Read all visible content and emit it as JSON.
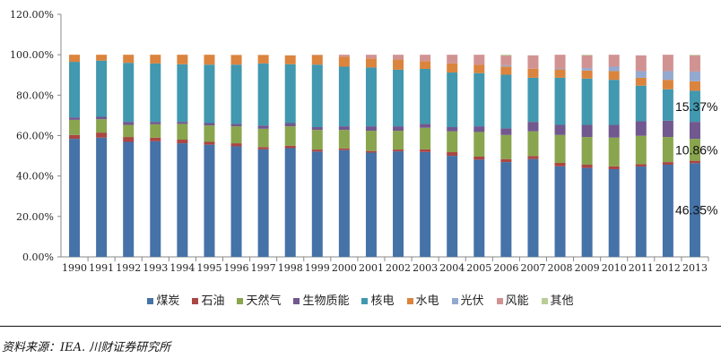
{
  "chart_data": {
    "type": "bar",
    "stacked": true,
    "ylim": [
      0,
      120
    ],
    "yticks": [
      "0.00%",
      "20.00%",
      "40.00%",
      "60.00%",
      "80.00%",
      "100.00%",
      "120.00%"
    ],
    "ytick_values": [
      0,
      20,
      40,
      60,
      80,
      100,
      120
    ],
    "categories": [
      "1990",
      "1991",
      "1992",
      "1993",
      "1994",
      "1995",
      "1996",
      "1997",
      "1998",
      "1999",
      "2000",
      "2001",
      "2002",
      "2003",
      "2004",
      "2005",
      "2006",
      "2007",
      "2008",
      "2009",
      "2010",
      "2011",
      "2012",
      "2013"
    ],
    "series": [
      {
        "name": "煤炭",
        "color": "#4572A7",
        "values": [
          58.4,
          59.0,
          56.9,
          57.2,
          56.2,
          55.5,
          54.7,
          53.2,
          53.8,
          52.1,
          52.8,
          51.6,
          52.2,
          51.9,
          50.0,
          48.1,
          46.9,
          48.4,
          44.8,
          44.0,
          43.4,
          44.7,
          45.6,
          46.35
        ]
      },
      {
        "name": "石油",
        "color": "#AA4643",
        "values": [
          1.9,
          2.5,
          2.4,
          1.8,
          1.8,
          1.4,
          1.5,
          1.1,
          1.2,
          1.0,
          0.9,
          0.8,
          0.9,
          1.3,
          1.8,
          1.5,
          1.5,
          1.5,
          1.7,
          1.6,
          1.4,
          1.2,
          1.3,
          1.2
        ]
      },
      {
        "name": "天然气",
        "color": "#89A54E",
        "values": [
          7.5,
          6.6,
          6.0,
          6.6,
          7.8,
          8.1,
          8.4,
          9.1,
          9.6,
          9.7,
          9.1,
          10.0,
          9.3,
          10.7,
          10.3,
          12.2,
          11.9,
          12.2,
          13.8,
          13.7,
          14.2,
          14.0,
          12.4,
          10.86
        ]
      },
      {
        "name": "生物质能",
        "color": "#71588F",
        "values": [
          1.2,
          1.2,
          1.5,
          1.2,
          1.0,
          1.2,
          1.2,
          1.6,
          1.6,
          1.4,
          1.8,
          2.2,
          2.2,
          1.9,
          2.1,
          2.8,
          3.3,
          4.7,
          5.0,
          6.0,
          6.3,
          7.2,
          8.1,
          8.4
        ]
      },
      {
        "name": "核电",
        "color": "#4198AF",
        "values": [
          27.5,
          27.8,
          29.2,
          28.9,
          28.5,
          28.9,
          29.3,
          30.7,
          29.1,
          30.9,
          29.5,
          29.1,
          28.0,
          27.2,
          27.0,
          26.3,
          26.5,
          21.8,
          23.3,
          22.9,
          22.3,
          17.6,
          15.5,
          15.37
        ]
      },
      {
        "name": "水电",
        "color": "#DB843D",
        "values": [
          3.5,
          2.9,
          4.0,
          4.3,
          4.7,
          4.9,
          4.8,
          4.2,
          4.4,
          4.7,
          4.9,
          4.5,
          5.0,
          3.8,
          4.5,
          4.1,
          4.1,
          4.5,
          4.2,
          4.0,
          4.3,
          3.9,
          4.7,
          4.7
        ]
      },
      {
        "name": "光伏",
        "color": "#93A9CF",
        "values": [
          0,
          0,
          0,
          0,
          0,
          0,
          0,
          0,
          0,
          0,
          0,
          0,
          0,
          0,
          0,
          0,
          0.6,
          0,
          0.4,
          1.2,
          2.2,
          3.3,
          4.3,
          4.8
        ]
      },
      {
        "name": "风能",
        "color": "#D19392",
        "values": [
          0,
          0,
          0,
          0,
          0,
          0,
          0,
          0,
          0,
          0.2,
          1.0,
          1.8,
          2.4,
          3.2,
          4.3,
          5.0,
          4.8,
          6.6,
          6.8,
          6.3,
          5.9,
          7.8,
          8.1,
          8.0
        ]
      },
      {
        "name": "其他",
        "color": "#B9CD96",
        "values": [
          0,
          0,
          0,
          0,
          0,
          0,
          0,
          0,
          0,
          0,
          0,
          0,
          0,
          0,
          0,
          0,
          0.4,
          0,
          0,
          0.3,
          0,
          0,
          0,
          0.3
        ]
      }
    ],
    "annotations": [
      {
        "category": "2013",
        "series": "核电",
        "text": "15.37%"
      },
      {
        "category": "2013",
        "series": "天然气",
        "text": "10.86%"
      },
      {
        "category": "2013",
        "series": "煤炭",
        "text": "46.35%"
      }
    ],
    "legend_position": "bottom",
    "grid": false
  },
  "source": "资料来源：IEA. 川财证券研究所"
}
